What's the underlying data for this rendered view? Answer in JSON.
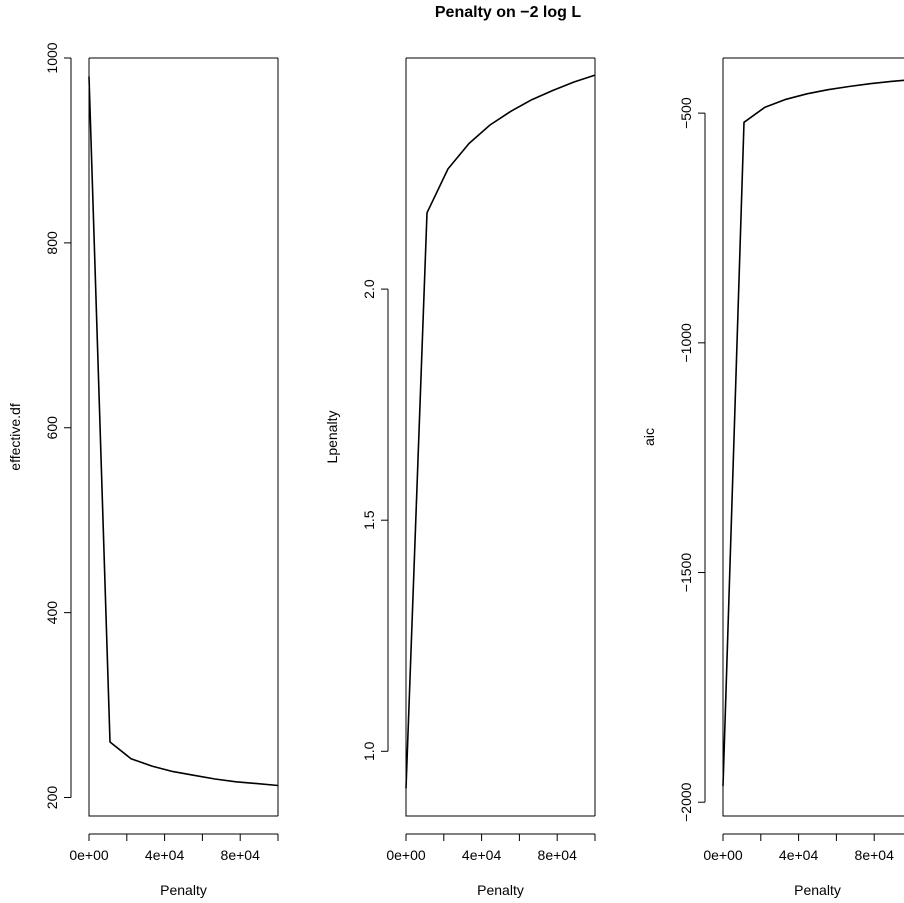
{
  "title": "Penalty on −2 log L",
  "colors": {
    "line": "#000000",
    "background": "#ffffff"
  },
  "chart_data": [
    {
      "type": "line",
      "xlabel": "Penalty",
      "ylabel": "effective.df",
      "xlim": [
        0,
        100000
      ],
      "ylim": [
        180,
        1000
      ],
      "x_ticks": [
        0,
        20000,
        40000,
        60000,
        80000,
        100000
      ],
      "x_tick_labels": [
        "0e+00",
        "",
        "4e+04",
        "",
        "8e+04",
        ""
      ],
      "y_ticks": [
        200,
        400,
        600,
        800,
        1000
      ],
      "y_tick_labels": [
        "200",
        "400",
        "600",
        "800",
        "1000"
      ],
      "x": [
        0,
        11111,
        22222,
        33333,
        44444,
        55556,
        66667,
        77778,
        88889,
        100000
      ],
      "y": [
        980,
        260,
        242,
        234,
        228,
        224,
        220,
        217,
        215,
        213
      ]
    },
    {
      "type": "line",
      "xlabel": "Penalty",
      "ylabel": "Lpenalty",
      "xlim": [
        0,
        100000
      ],
      "ylim": [
        0.86,
        2.5
      ],
      "x_ticks": [
        0,
        20000,
        40000,
        60000,
        80000,
        100000
      ],
      "x_tick_labels": [
        "0e+00",
        "",
        "4e+04",
        "",
        "8e+04",
        ""
      ],
      "y_ticks": [
        1.0,
        1.5,
        2.0
      ],
      "y_tick_labels": [
        "1.0",
        "1.5",
        "2.0"
      ],
      "x": [
        0,
        11111,
        22222,
        33333,
        44444,
        55556,
        66667,
        77778,
        88889,
        100000
      ],
      "y": [
        0.92,
        2.165,
        2.26,
        2.315,
        2.355,
        2.385,
        2.41,
        2.43,
        2.448,
        2.463
      ]
    },
    {
      "type": "line",
      "xlabel": "Penalty",
      "ylabel": "aic",
      "xlim": [
        0,
        100000
      ],
      "ylim": [
        -2030,
        -380
      ],
      "x_ticks": [
        0,
        20000,
        40000,
        60000,
        80000,
        100000
      ],
      "x_tick_labels": [
        "0e+00",
        "",
        "4e+04",
        "",
        "8e+04",
        ""
      ],
      "y_ticks": [
        -2000,
        -1500,
        -1000,
        -500
      ],
      "y_tick_labels": [
        "−2000",
        "−1500",
        "−1000",
        "−500"
      ],
      "x": [
        0,
        11111,
        22222,
        33333,
        44444,
        55556,
        66667,
        77778,
        88889,
        100000
      ],
      "y": [
        -1965,
        -520,
        -487,
        -470,
        -458,
        -449,
        -442,
        -436,
        -431,
        -427
      ]
    }
  ]
}
